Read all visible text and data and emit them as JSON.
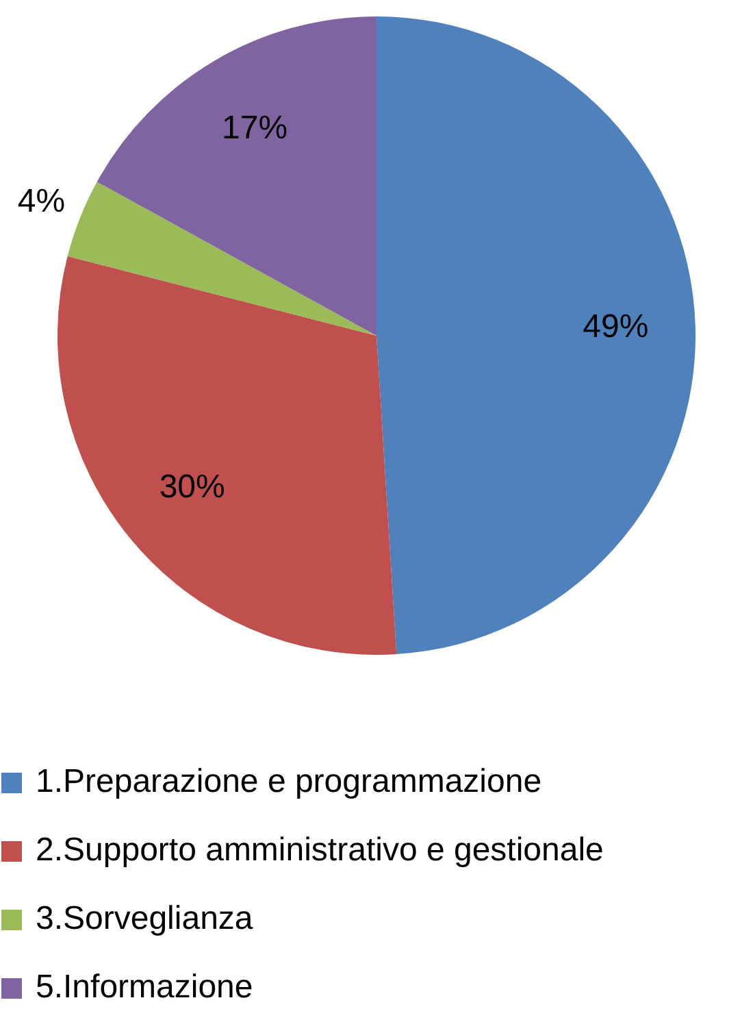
{
  "chart_data": {
    "type": "pie",
    "categories": [
      "1.Preparazione e programmazione",
      "2.Supporto amministrativo e gestionale",
      "3.Sorveglianza",
      "5.Informazione"
    ],
    "values": [
      49,
      30,
      4,
      17
    ],
    "colors": [
      "#4f81bd",
      "#c0504d",
      "#9bbb59",
      "#8064a2"
    ],
    "value_labels": [
      "49%",
      "30%",
      "4%",
      "17%"
    ],
    "legend": "bottom"
  }
}
